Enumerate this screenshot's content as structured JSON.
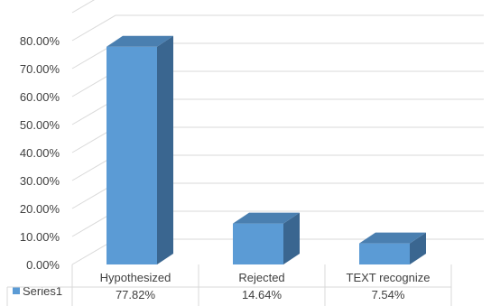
{
  "chart_data": {
    "type": "bar",
    "categories": [
      "Hypothesized",
      "Rejected",
      "TEXT recognize"
    ],
    "series": [
      {
        "name": "Series1",
        "values": [
          77.82,
          14.64,
          7.54
        ],
        "color": "#5b9bd5"
      }
    ],
    "data_labels": [
      "77.82%",
      "14.64%",
      "7.54%"
    ],
    "y_ticks": [
      "0.00%",
      "10.00%",
      "20.00%",
      "30.00%",
      "40.00%",
      "50.00%",
      "60.00%",
      "70.00%",
      "80.00%"
    ],
    "ylim": [
      0,
      80
    ],
    "grid": true,
    "legend": "data-table",
    "style": "3d-column",
    "colors": {
      "front": "#5b9bd5",
      "side": "#3a6690",
      "top": "#4a7fb0",
      "grid": "#d9d9d9",
      "text": "#404040"
    }
  }
}
